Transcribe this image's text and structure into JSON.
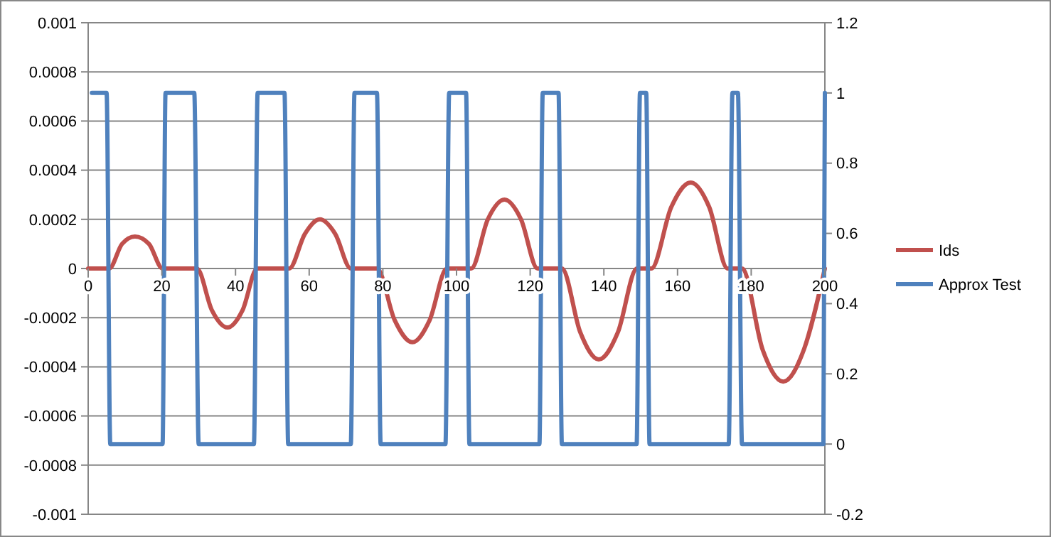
{
  "chart_data": {
    "type": "line",
    "xlim": [
      0,
      200
    ],
    "xticks": [
      0,
      20,
      40,
      60,
      80,
      100,
      120,
      140,
      160,
      180,
      200
    ],
    "ylim": [
      -0.001,
      0.001
    ],
    "yticks": [
      -0.001,
      -0.0008,
      -0.0006,
      -0.0004,
      -0.0002,
      0,
      0.0002,
      0.0004,
      0.0006,
      0.0008,
      0.001
    ],
    "y2lim": [
      -0.2,
      1.2
    ],
    "y2ticks": [
      -0.2,
      0,
      0.2,
      0.4,
      0.6,
      0.8,
      1,
      1.2
    ],
    "grid": "y",
    "legend": "right",
    "line_style": "solid",
    "marker": "none",
    "series": [
      {
        "name": "Ids",
        "color": "#c0504d",
        "x": [
          0,
          5.7,
          9.2,
          12.7,
          16.5,
          20.2,
          29.5,
          33.6,
          37.8,
          41.9,
          45.9,
          54.6,
          58.8,
          62.9,
          67.1,
          71.3,
          78.4,
          83.2,
          88,
          92.7,
          97.4,
          104,
          108.5,
          113,
          117.5,
          122,
          128.6,
          133.6,
          138.6,
          143.8,
          149,
          152.9,
          158.3,
          163.6,
          168.6,
          173.6,
          177.5,
          183.1,
          188.7,
          194.3,
          200
        ],
        "values": [
          0,
          0,
          0.0001,
          0.00013,
          0.0001,
          0,
          0,
          -0.00017,
          -0.00024,
          -0.00017,
          0,
          0,
          0.00014,
          0.0002,
          0.00014,
          0,
          0,
          -0.00021,
          -0.0003,
          -0.00021,
          0,
          0,
          0.0002,
          0.00028,
          0.0002,
          0,
          0,
          -0.00026,
          -0.00037,
          -0.00026,
          0,
          0,
          0.00025,
          0.00035,
          0.00025,
          0,
          0,
          -0.00033,
          -0.00046,
          -0.00033,
          0
        ]
      },
      {
        "name": "Approx Test",
        "color": "#4f81bd",
        "axis": "y2",
        "x": [
          1,
          5,
          6,
          20.2,
          21,
          28.8,
          30,
          45,
          46,
          53.3,
          54.3,
          71.3,
          72.3,
          78.4,
          79.4,
          97,
          98,
          102.6,
          103.5,
          122.5,
          123.4,
          127.7,
          128.6,
          148.9,
          149.8,
          151.5,
          152.4,
          173.9,
          174.9,
          176.4,
          177.5,
          199.6,
          200
        ],
        "values": [
          1,
          1,
          0,
          0,
          1,
          1,
          0,
          0,
          1,
          1,
          0,
          0,
          1,
          1,
          0,
          0,
          1,
          1,
          0,
          0,
          1,
          1,
          0,
          0,
          1,
          1,
          0,
          0,
          1,
          1,
          0,
          0,
          1
        ]
      }
    ]
  }
}
